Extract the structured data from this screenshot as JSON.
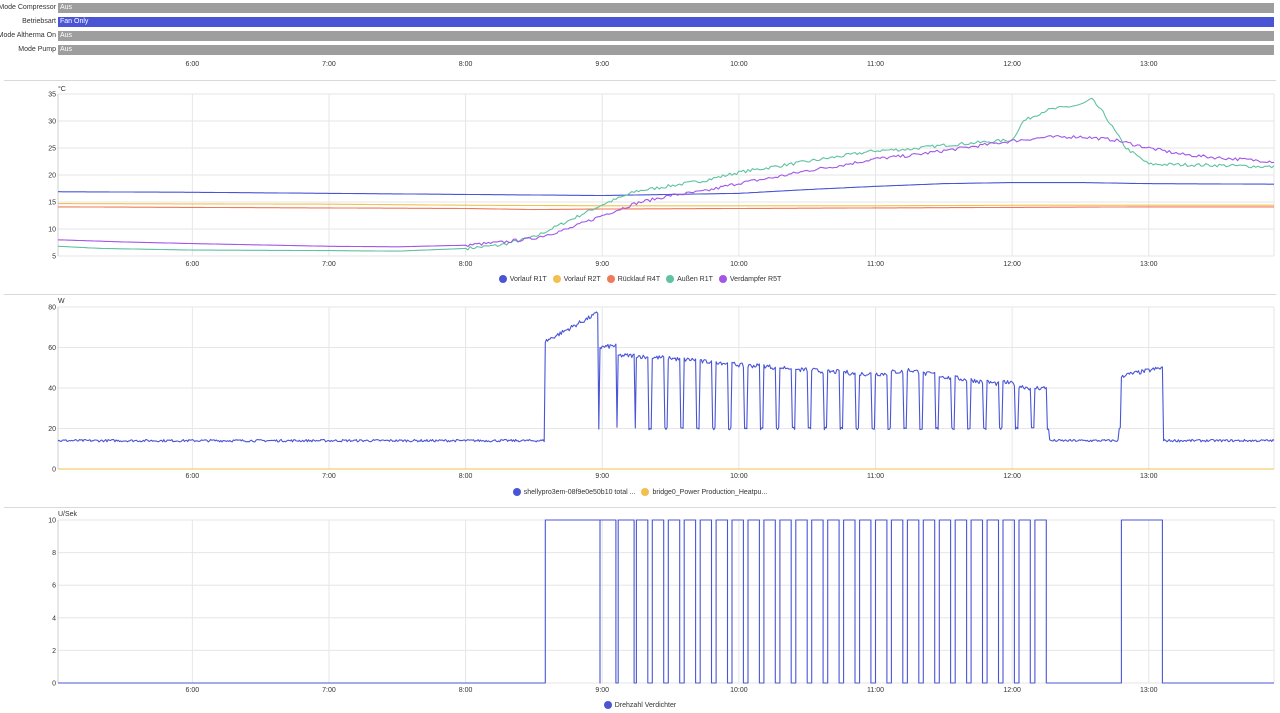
{
  "timeline": {
    "rows": [
      {
        "label": "Mode Compressor",
        "state": "Aus",
        "color": "#9e9e9e"
      },
      {
        "label": "Betriebsart",
        "state": "Fan Only",
        "color": "#4a55d6"
      },
      {
        "label": "Mode Altherma On",
        "state": "Aus",
        "color": "#9e9e9e"
      },
      {
        "label": "Mode Pump",
        "state": "Aus",
        "color": "#9e9e9e"
      }
    ],
    "x_ticks": [
      "6:00",
      "7:00",
      "8:00",
      "9:00",
      "10:00",
      "11:00",
      "12:00",
      "13:00"
    ]
  },
  "chart_data": [
    {
      "type": "line",
      "unit": "°C",
      "ylim": [
        5,
        35
      ],
      "yticks": [
        5,
        10,
        15,
        20,
        25,
        30,
        35
      ],
      "xlim": [
        "5:01",
        "13:55"
      ],
      "xticks": [
        "6:00",
        "7:00",
        "8:00",
        "9:00",
        "10:00",
        "11:00",
        "12:00",
        "13:00"
      ],
      "grid": true,
      "legend_position": "bottom",
      "series": [
        {
          "name": "Vorlauf R1T",
          "color": "#4a55d6",
          "points": [
            [
              "5:01",
              16.9
            ],
            [
              "6:00",
              16.8
            ],
            [
              "7:00",
              16.6
            ],
            [
              "8:00",
              16.4
            ],
            [
              "9:00",
              16.2
            ],
            [
              "10:00",
              16.6
            ],
            [
              "10:30",
              17.3
            ],
            [
              "11:00",
              17.9
            ],
            [
              "11:30",
              18.4
            ],
            [
              "12:00",
              18.6
            ],
            [
              "12:30",
              18.6
            ],
            [
              "13:00",
              18.4
            ],
            [
              "13:55",
              18.3
            ]
          ]
        },
        {
          "name": "Vorlauf R2T",
          "color": "#f2c04e",
          "points": [
            [
              "5:01",
              14.7
            ],
            [
              "7:00",
              14.6
            ],
            [
              "8:00",
              14.4
            ],
            [
              "9:00",
              14.3
            ],
            [
              "10:00",
              14.3
            ],
            [
              "11:00",
              14.3
            ],
            [
              "12:00",
              14.4
            ],
            [
              "13:00",
              14.4
            ],
            [
              "13:55",
              14.4
            ]
          ]
        },
        {
          "name": "Rücklauf R4T",
          "color": "#ef7a5c",
          "points": [
            [
              "5:01",
              14.1
            ],
            [
              "6:00",
              14.0
            ],
            [
              "7:00",
              13.9
            ],
            [
              "8:00",
              13.8
            ],
            [
              "8:30",
              13.6
            ],
            [
              "9:00",
              13.7
            ],
            [
              "10:00",
              13.8
            ],
            [
              "11:00",
              13.9
            ],
            [
              "12:00",
              14.0
            ],
            [
              "13:00",
              14.1
            ],
            [
              "13:55",
              14.1
            ]
          ]
        },
        {
          "name": "Außen R1T",
          "color": "#5fc2a1",
          "points": [
            [
              "5:01",
              6.8
            ],
            [
              "5:20",
              6.4
            ],
            [
              "6:00",
              6.1
            ],
            [
              "7:00",
              6.0
            ],
            [
              "7:30",
              5.9
            ],
            [
              "8:00",
              6.4
            ],
            [
              "8:15",
              7.0
            ],
            [
              "8:30",
              8.5
            ],
            [
              "8:45",
              11.5
            ],
            [
              "9:00",
              14.5
            ],
            [
              "9:15",
              17.0
            ],
            [
              "9:30",
              18.0
            ],
            [
              "9:45",
              19.0
            ],
            [
              "10:00",
              20.5
            ],
            [
              "10:15",
              21.5
            ],
            [
              "10:30",
              22.5
            ],
            [
              "10:45",
              23.5
            ],
            [
              "11:00",
              24.5
            ],
            [
              "11:15",
              24.8
            ],
            [
              "11:30",
              25.5
            ],
            [
              "11:45",
              26.0
            ],
            [
              "12:00",
              26.5
            ],
            [
              "12:05",
              30.0
            ],
            [
              "12:15",
              32.0
            ],
            [
              "12:30",
              33.0
            ],
            [
              "12:35",
              34.0
            ],
            [
              "12:40",
              31.5
            ],
            [
              "12:50",
              25.0
            ],
            [
              "13:00",
              22.0
            ],
            [
              "13:30",
              21.8
            ],
            [
              "13:55",
              21.5
            ]
          ]
        },
        {
          "name": "Verdampfer R5T",
          "color": "#a257e8",
          "points": [
            [
              "5:01",
              8.0
            ],
            [
              "5:30",
              7.6
            ],
            [
              "6:00",
              7.3
            ],
            [
              "7:00",
              6.8
            ],
            [
              "7:30",
              6.7
            ],
            [
              "8:00",
              7.0
            ],
            [
              "8:15",
              7.5
            ],
            [
              "8:30",
              8.3
            ],
            [
              "8:45",
              10.0
            ],
            [
              "9:00",
              12.5
            ],
            [
              "9:15",
              14.8
            ],
            [
              "9:30",
              16.2
            ],
            [
              "9:45",
              17.0
            ],
            [
              "10:00",
              18.5
            ],
            [
              "10:15",
              19.5
            ],
            [
              "10:30",
              20.8
            ],
            [
              "10:45",
              21.8
            ],
            [
              "11:00",
              23.0
            ],
            [
              "11:15",
              23.6
            ],
            [
              "11:30",
              24.5
            ],
            [
              "11:45",
              25.4
            ],
            [
              "12:00",
              26.3
            ],
            [
              "12:15",
              27.0
            ],
            [
              "12:30",
              27.1
            ],
            [
              "12:45",
              26.5
            ],
            [
              "13:00",
              25.0
            ],
            [
              "13:15",
              23.8
            ],
            [
              "13:30",
              23.2
            ],
            [
              "13:55",
              22.5
            ]
          ]
        }
      ]
    },
    {
      "type": "line",
      "unit": "W",
      "ylim": [
        0,
        80
      ],
      "yticks": [
        0,
        20,
        40,
        60,
        80
      ],
      "xlim": [
        "5:01",
        "13:55"
      ],
      "xticks": [
        "6:00",
        "7:00",
        "8:00",
        "9:00",
        "10:00",
        "11:00",
        "12:00",
        "13:00"
      ],
      "grid": true,
      "legend_position": "bottom",
      "series": [
        {
          "name": "shellypro3em-08f9e0e50b10 total ...",
          "color": "#4a55d6",
          "baseline": 14,
          "low": 20,
          "noise": 0.8,
          "segments": [
            {
              "start": "8:35",
              "end": "8:58",
              "from": 63,
              "to": 77
            },
            {
              "start": "8:59",
              "end": "9:06",
              "from": 60,
              "to": 61
            },
            {
              "start": "9:07",
              "end": "9:14",
              "from": 56,
              "to": 56
            },
            {
              "start": "9:15",
              "end": "9:20",
              "from": 56,
              "to": 55
            },
            {
              "start": "9:22",
              "end": "9:27",
              "from": 55,
              "to": 55
            },
            {
              "start": "9:29",
              "end": "9:34",
              "from": 55,
              "to": 54
            },
            {
              "start": "9:36",
              "end": "9:41",
              "from": 54,
              "to": 54
            },
            {
              "start": "9:43",
              "end": "9:48",
              "from": 53,
              "to": 53
            },
            {
              "start": "9:50",
              "end": "9:55",
              "from": 53,
              "to": 52
            },
            {
              "start": "9:57",
              "end": "10:02",
              "from": 52,
              "to": 51
            },
            {
              "start": "10:04",
              "end": "10:09",
              "from": 51,
              "to": 51
            },
            {
              "start": "10:11",
              "end": "10:16",
              "from": 51,
              "to": 50
            },
            {
              "start": "10:18",
              "end": "10:23",
              "from": 50,
              "to": 50
            },
            {
              "start": "10:25",
              "end": "10:30",
              "from": 49,
              "to": 49
            },
            {
              "start": "10:32",
              "end": "10:37",
              "from": 49,
              "to": 48
            },
            {
              "start": "10:39",
              "end": "10:44",
              "from": 48,
              "to": 48
            },
            {
              "start": "10:46",
              "end": "10:51",
              "from": 48,
              "to": 47
            },
            {
              "start": "10:53",
              "end": "10:58",
              "from": 47,
              "to": 47
            },
            {
              "start": "11:00",
              "end": "11:05",
              "from": 47,
              "to": 47
            },
            {
              "start": "11:07",
              "end": "11:12",
              "from": 48,
              "to": 48
            },
            {
              "start": "11:14",
              "end": "11:19",
              "from": 49,
              "to": 48
            },
            {
              "start": "11:21",
              "end": "11:26",
              "from": 47,
              "to": 47
            },
            {
              "start": "11:28",
              "end": "11:33",
              "from": 46,
              "to": 45
            },
            {
              "start": "11:35",
              "end": "11:40",
              "from": 45,
              "to": 44
            },
            {
              "start": "11:42",
              "end": "11:47",
              "from": 44,
              "to": 43
            },
            {
              "start": "11:49",
              "end": "11:54",
              "from": 43,
              "to": 42
            },
            {
              "start": "11:56",
              "end": "12:01",
              "from": 43,
              "to": 42
            },
            {
              "start": "12:03",
              "end": "12:08",
              "from": 41,
              "to": 40
            },
            {
              "start": "12:10",
              "end": "12:15",
              "from": 40,
              "to": 40
            },
            {
              "start": "12:48",
              "end": "13:06",
              "from": 46,
              "to": 50
            }
          ]
        },
        {
          "name": "bridge0_Power Production_Heatpu...",
          "color": "#f2c04e",
          "constant": 0
        }
      ]
    },
    {
      "type": "line",
      "unit": "U/Sek",
      "ylim": [
        0,
        10
      ],
      "yticks": [
        0,
        2,
        4,
        6,
        8,
        10
      ],
      "xlim": [
        "5:01",
        "13:55"
      ],
      "xticks": [
        "6:00",
        "7:00",
        "8:00",
        "9:00",
        "10:00",
        "11:00",
        "12:00",
        "13:00"
      ],
      "grid": true,
      "legend_position": "bottom",
      "series": [
        {
          "name": "Drehzahl Verdichter",
          "color": "#4a55d6",
          "step": true,
          "low": 0,
          "high": 10,
          "on_periods": [
            [
              "8:35",
              "8:59"
            ],
            [
              "8:59",
              "9:06"
            ],
            [
              "9:07",
              "9:14"
            ],
            [
              "9:15",
              "9:20"
            ],
            [
              "9:22",
              "9:27"
            ],
            [
              "9:29",
              "9:34"
            ],
            [
              "9:36",
              "9:41"
            ],
            [
              "9:43",
              "9:48"
            ],
            [
              "9:50",
              "9:55"
            ],
            [
              "9:57",
              "10:02"
            ],
            [
              "10:04",
              "10:09"
            ],
            [
              "10:11",
              "10:16"
            ],
            [
              "10:18",
              "10:23"
            ],
            [
              "10:25",
              "10:30"
            ],
            [
              "10:32",
              "10:37"
            ],
            [
              "10:39",
              "10:44"
            ],
            [
              "10:46",
              "10:51"
            ],
            [
              "10:53",
              "10:58"
            ],
            [
              "11:00",
              "11:05"
            ],
            [
              "11:07",
              "11:12"
            ],
            [
              "11:14",
              "11:19"
            ],
            [
              "11:21",
              "11:26"
            ],
            [
              "11:28",
              "11:33"
            ],
            [
              "11:35",
              "11:40"
            ],
            [
              "11:42",
              "11:47"
            ],
            [
              "11:49",
              "11:54"
            ],
            [
              "11:56",
              "12:01"
            ],
            [
              "12:03",
              "12:08"
            ],
            [
              "12:10",
              "12:15"
            ],
            [
              "12:48",
              "13:06"
            ]
          ]
        }
      ]
    }
  ]
}
